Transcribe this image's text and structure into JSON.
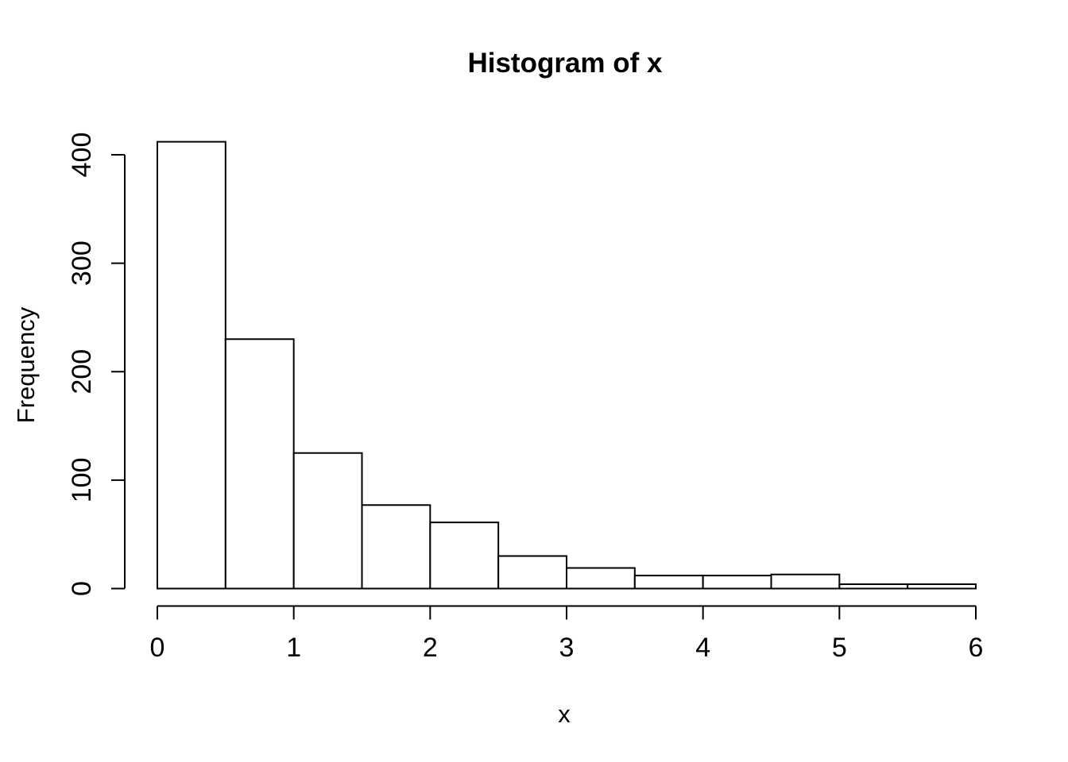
{
  "window": {
    "background": "#ffffff"
  },
  "chart_data": {
    "type": "histogram",
    "title": "Histogram of x",
    "xlabel": "x",
    "ylabel": "Frequency",
    "xlim": [
      0,
      6
    ],
    "ylim": [
      0,
      400
    ],
    "bin_width": 0.5,
    "breaks": [
      0,
      0.5,
      1,
      1.5,
      2,
      2.5,
      3,
      3.5,
      4,
      4.5,
      5,
      5.5,
      6
    ],
    "counts": [
      412,
      230,
      125,
      77,
      61,
      30,
      19,
      12,
      12,
      13,
      4,
      4
    ],
    "x_ticks": [
      {
        "value": 0,
        "label": "0"
      },
      {
        "value": 1,
        "label": "1"
      },
      {
        "value": 2,
        "label": "2"
      },
      {
        "value": 3,
        "label": "3"
      },
      {
        "value": 4,
        "label": "4"
      },
      {
        "value": 5,
        "label": "5"
      },
      {
        "value": 6,
        "label": "6"
      }
    ],
    "y_ticks": [
      {
        "value": 0,
        "label": "0"
      },
      {
        "value": 100,
        "label": "100"
      },
      {
        "value": 200,
        "label": "200"
      },
      {
        "value": 300,
        "label": "300"
      },
      {
        "value": 400,
        "label": "400"
      }
    ],
    "grid": false,
    "legend": "none",
    "bar_fill": "#ffffff",
    "bar_stroke": "#000000",
    "axis_color": "#000000",
    "text_color": "#000000"
  }
}
